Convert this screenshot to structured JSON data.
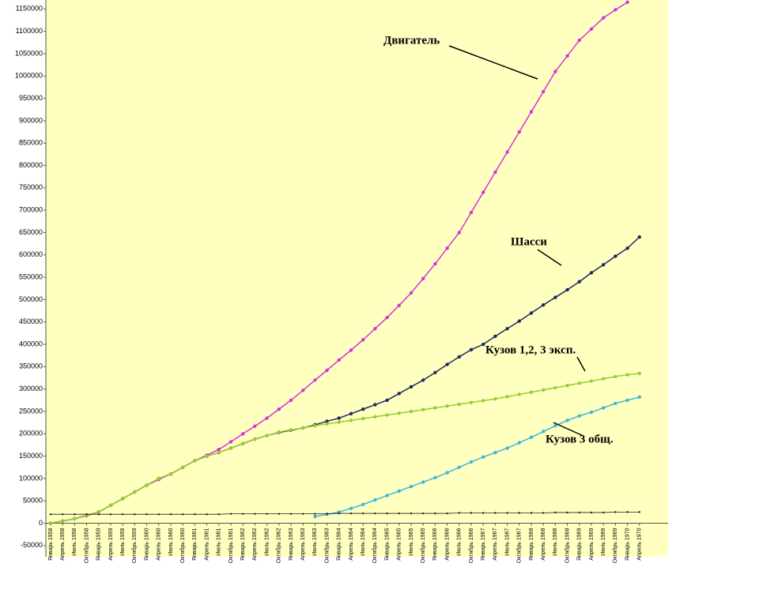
{
  "chart_data": {
    "type": "line",
    "categories": [
      "Январь 1958",
      "Апрель 1958",
      "Июль 1958",
      "Октябрь 1958",
      "Январь 1959",
      "Апрель 1959",
      "Июль 1959",
      "Октябрь 1959",
      "Январь 1960",
      "Апрель 1960",
      "Июль 1960",
      "Октябрь 1960",
      "Январь 1961",
      "Апрель 1961",
      "Июль 1961",
      "Октябрь 1961",
      "Январь 1962",
      "Апрель 1962",
      "Июль 1962",
      "Октябрь 1962",
      "Январь 1963",
      "Апрель 1963",
      "Июль 1963",
      "Октябрь 1963",
      "Январь 1964",
      "Апрель 1964",
      "Июль 1964",
      "Октябрь 1964",
      "Январь 1965",
      "Апрель 1965",
      "Июль 1965",
      "Октябрь 1965",
      "Январь 1966",
      "Апрель 1966",
      "Июль 1966",
      "Октябрь 1966",
      "Январь 1967",
      "Апрель 1967",
      "Июль 1967",
      "Октябрь 1967",
      "Январь 1968",
      "Апрель 1968",
      "Июль 1968",
      "Октябрь 1968",
      "Январь 1969",
      "Апрель 1969",
      "Июль 1969",
      "Октябрь 1969",
      "Январь 1970",
      "Апрель 1970"
    ],
    "series": [
      {
        "name": "Двигатель",
        "color": "#d633d6",
        "values": [
          0,
          5000,
          10000,
          17000,
          25000,
          40000,
          55000,
          70000,
          85000,
          98000,
          110000,
          125000,
          140000,
          152000,
          165000,
          182000,
          200000,
          217000,
          235000,
          255000,
          275000,
          297000,
          320000,
          342000,
          365000,
          387000,
          410000,
          435000,
          460000,
          487000,
          515000,
          547000,
          580000,
          615000,
          650000,
          695000,
          740000,
          785000,
          830000,
          875000,
          920000,
          965000,
          1010000,
          1045000,
          1080000,
          1105000,
          1130000,
          1148000,
          1165000,
          null
        ]
      },
      {
        "name": "Шасси",
        "color": "#1f2a5c",
        "values": [
          0,
          5000,
          10000,
          18000,
          25000,
          40000,
          55000,
          70000,
          85000,
          100000,
          110000,
          125000,
          140000,
          150000,
          158000,
          168000,
          178000,
          188000,
          196000,
          203000,
          208000,
          213000,
          220000,
          228000,
          235000,
          245000,
          255000,
          265000,
          275000,
          290000,
          305000,
          320000,
          337000,
          355000,
          372000,
          388000,
          400000,
          418000,
          435000,
          452000,
          470000,
          488000,
          505000,
          522000,
          540000,
          560000,
          578000,
          597000,
          615000,
          640000
        ]
      },
      {
        "name": "Кузов 1,2, 3 эксп.",
        "color": "#9acd32",
        "values": [
          0,
          5000,
          10000,
          18000,
          25000,
          40000,
          55000,
          70000,
          85000,
          100000,
          110000,
          125000,
          140000,
          150000,
          158000,
          168000,
          178000,
          188000,
          196000,
          204000,
          209000,
          213000,
          218000,
          222000,
          226000,
          230000,
          234000,
          238000,
          242000,
          246000,
          250000,
          254000,
          258000,
          262000,
          266000,
          270000,
          274000,
          278000,
          283000,
          288000,
          293000,
          298000,
          303000,
          308000,
          313000,
          318000,
          323000,
          328000,
          332000,
          335000
        ]
      },
      {
        "name": "Кузов 3 общ.",
        "color": "#3cb8d8",
        "values": [
          null,
          null,
          null,
          null,
          null,
          null,
          null,
          null,
          null,
          null,
          null,
          null,
          null,
          null,
          null,
          null,
          null,
          null,
          null,
          null,
          null,
          null,
          15000,
          20000,
          25000,
          33000,
          42000,
          52000,
          62000,
          72000,
          82000,
          92000,
          102000,
          113000,
          125000,
          137000,
          148000,
          158000,
          168000,
          180000,
          192000,
          205000,
          218000,
          230000,
          240000,
          248000,
          258000,
          268000,
          275000,
          282000
        ]
      },
      {
        "color": "#222222",
        "values": [
          20000,
          20000,
          20000,
          20000,
          20000,
          20000,
          20000,
          20000,
          20000,
          20000,
          20000,
          20000,
          20000,
          20000,
          20000,
          21000,
          21000,
          21000,
          21000,
          21000,
          21000,
          21000,
          21000,
          21000,
          22000,
          22000,
          22000,
          22000,
          22000,
          22000,
          22000,
          22000,
          22000,
          22000,
          23000,
          23000,
          23000,
          23000,
          23000,
          23000,
          23000,
          23000,
          24000,
          24000,
          24000,
          24000,
          24000,
          25000,
          25000,
          25000
        ]
      }
    ],
    "annotations": [
      "Двигатель",
      "Шасси",
      "Кузов 1,2, 3 эксп.",
      "Кузов 3 общ."
    ],
    "ylim": [
      -75000,
      1170000
    ],
    "yticks": [
      -50000,
      0,
      50000,
      100000,
      150000,
      200000,
      250000,
      300000,
      350000,
      400000,
      450000,
      500000,
      550000,
      600000,
      650000,
      700000,
      750000,
      800000,
      850000,
      900000,
      950000,
      1000000,
      1050000,
      1100000,
      1150000
    ],
    "background": "#ffffc0"
  }
}
